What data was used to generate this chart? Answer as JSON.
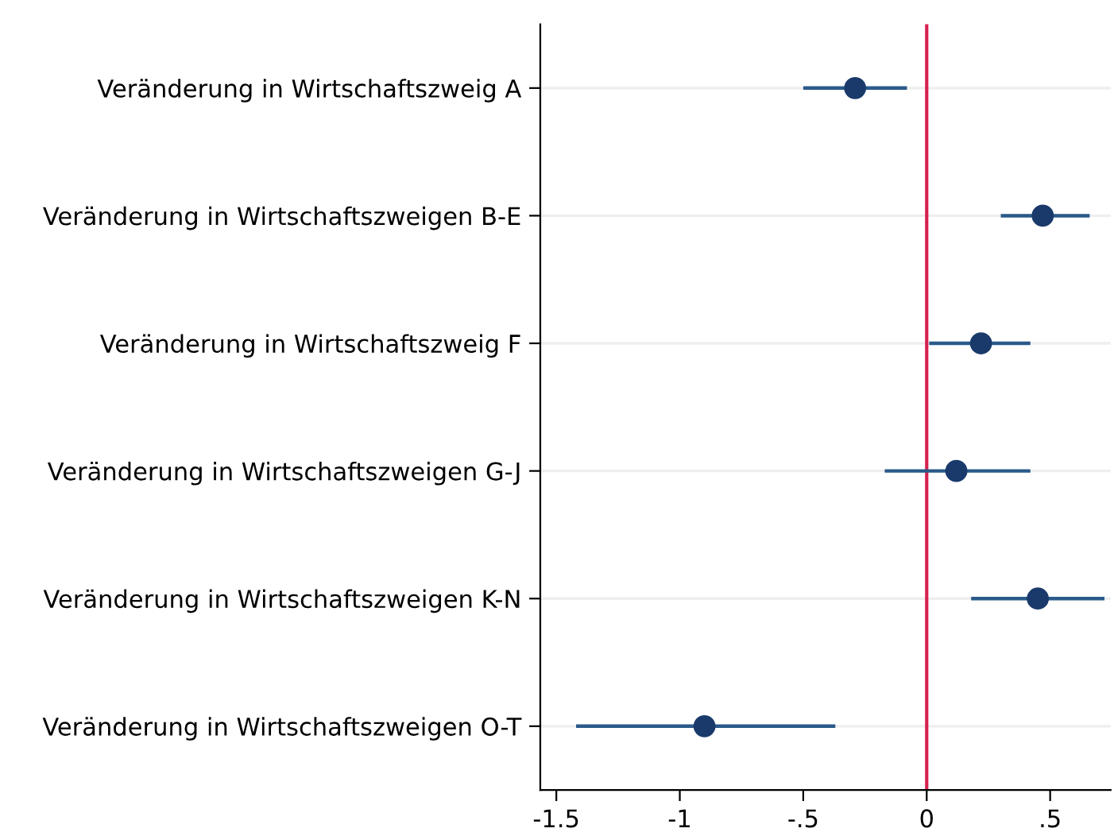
{
  "chart_data": {
    "type": "scatter",
    "orientation": "horizontal",
    "categories": [
      "Veränderung in Wirtschaftszweig A",
      "Veränderung in Wirtschaftszweigen B-E",
      "Veränderung in Wirtschaftszweig F",
      "Veränderung in Wirtschaftszweigen G-J",
      "Veränderung in Wirtschaftszweigen K-N",
      "Veränderung in Wirtschaftszweigen O-T"
    ],
    "values": [
      -0.29,
      0.47,
      0.22,
      0.12,
      0.45,
      -0.9
    ],
    "errors": [
      [
        -0.5,
        -0.08
      ],
      [
        0.3,
        0.66
      ],
      [
        0.01,
        0.42
      ],
      [
        -0.17,
        0.42
      ],
      [
        0.18,
        0.72
      ],
      [
        -1.42,
        -0.37
      ]
    ],
    "color": "#1a3a6b",
    "marker": "circle",
    "xlim": [
      -1.565,
      0.745
    ],
    "xticks": [
      {
        "value": -1.5,
        "label": "-1.5"
      },
      -1,
      {
        "value": -0.5,
        "label": "-.5"
      },
      0,
      {
        "value": 0.5,
        "label": ".5"
      }
    ],
    "ref_lines": [
      {
        "axis": "x",
        "value": 0,
        "label": null,
        "color": "#d6204e"
      }
    ],
    "grid": "y",
    "legend": false
  }
}
